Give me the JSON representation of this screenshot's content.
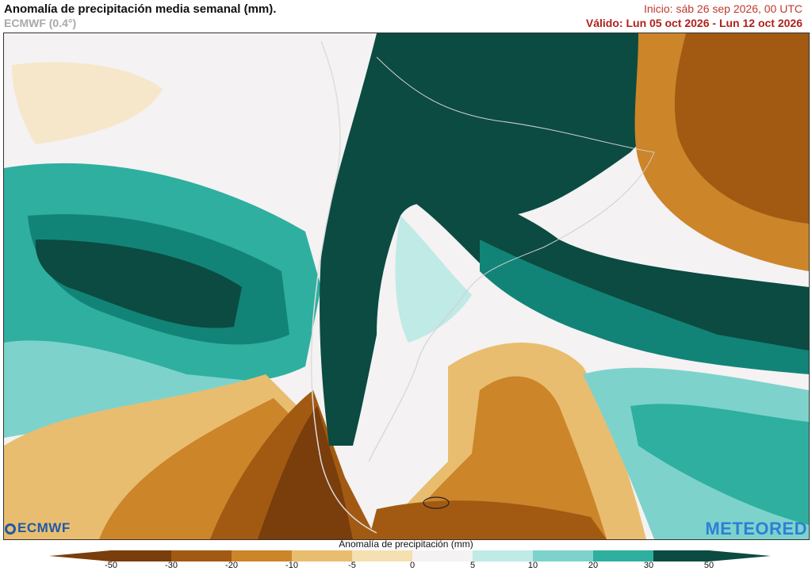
{
  "header": {
    "title": "Anomalía de precipitación media semanal (mm).",
    "model": "ECMWF (0.4°)",
    "init": "Inicio:  sáb 26 sep 2026, 00 UTC",
    "valid": "Válido: Lun 05 oct 2026 - Lun 12 oct 2026"
  },
  "logos": {
    "left": "ECMWF",
    "right": "METEORED"
  },
  "colorbar": {
    "title": "Anomalía de precipitación (mm)",
    "ticks": [
      "-50",
      "-30",
      "-20",
      "-10",
      "-5",
      "0",
      "5",
      "10",
      "20",
      "30",
      "50"
    ],
    "colors": {
      "deep_brown": "#7a3d0c",
      "brown": "#a25a12",
      "orange": "#cc8529",
      "tan": "#e9bd6f",
      "light_tan": "#f6dfb0",
      "neutral": "#f4f2f3",
      "light_teal": "#bfeae6",
      "aqua": "#7dd3cc",
      "teal": "#2faf9f",
      "dark_teal": "#128477",
      "deep_teal": "#0b4b41"
    }
  }
}
